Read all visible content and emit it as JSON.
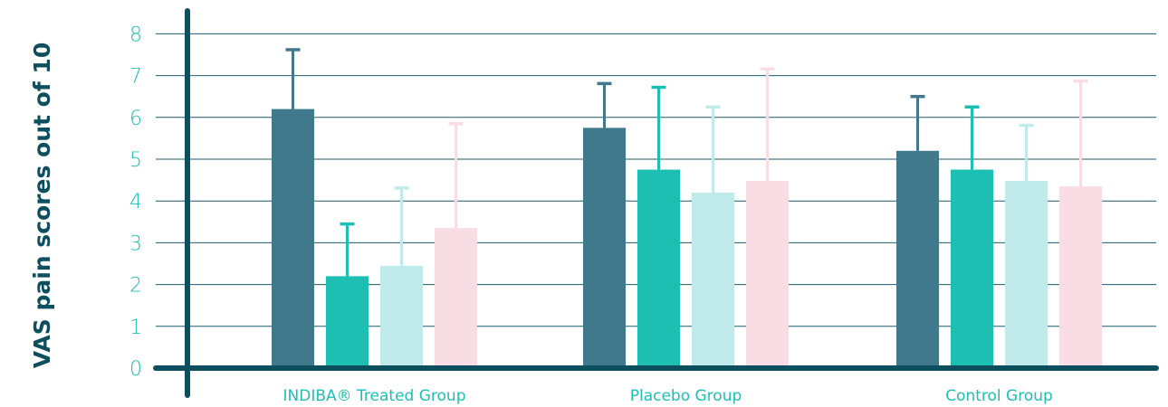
{
  "colors": {
    "axis": "#0d4f5f",
    "grid": "#1c5c6a",
    "text_teal": "#1ebfb3",
    "text_dark": "#0d4f5f"
  },
  "chart_data": {
    "type": "bar",
    "ylabel": "VAS pain scores out of 10",
    "xlabel": "",
    "title": "",
    "ylim": [
      0,
      8
    ],
    "y_ticks": [
      "0",
      "1",
      "2",
      "3",
      "4",
      "5",
      "6",
      "7",
      "8"
    ],
    "categories": [
      "INDIBA® Treated Group",
      "Placebo Group",
      "Control Group"
    ],
    "grid": true,
    "error_bars": true,
    "series": [
      {
        "color": "#41798c",
        "values": [
          6.2,
          5.75,
          5.2
        ],
        "errors": [
          1.42,
          1.06,
          1.3
        ]
      },
      {
        "color": "#1ebfb3",
        "values": [
          2.2,
          4.75,
          4.75
        ],
        "errors": [
          1.25,
          1.97,
          1.5
        ]
      },
      {
        "color": "#c0ebea",
        "values": [
          2.45,
          4.2,
          4.48
        ],
        "errors": [
          1.86,
          2.05,
          1.33
        ]
      },
      {
        "color": "#f9dde5",
        "values": [
          3.35,
          4.48,
          4.35
        ],
        "errors": [
          2.5,
          2.68,
          2.52
        ]
      }
    ]
  }
}
